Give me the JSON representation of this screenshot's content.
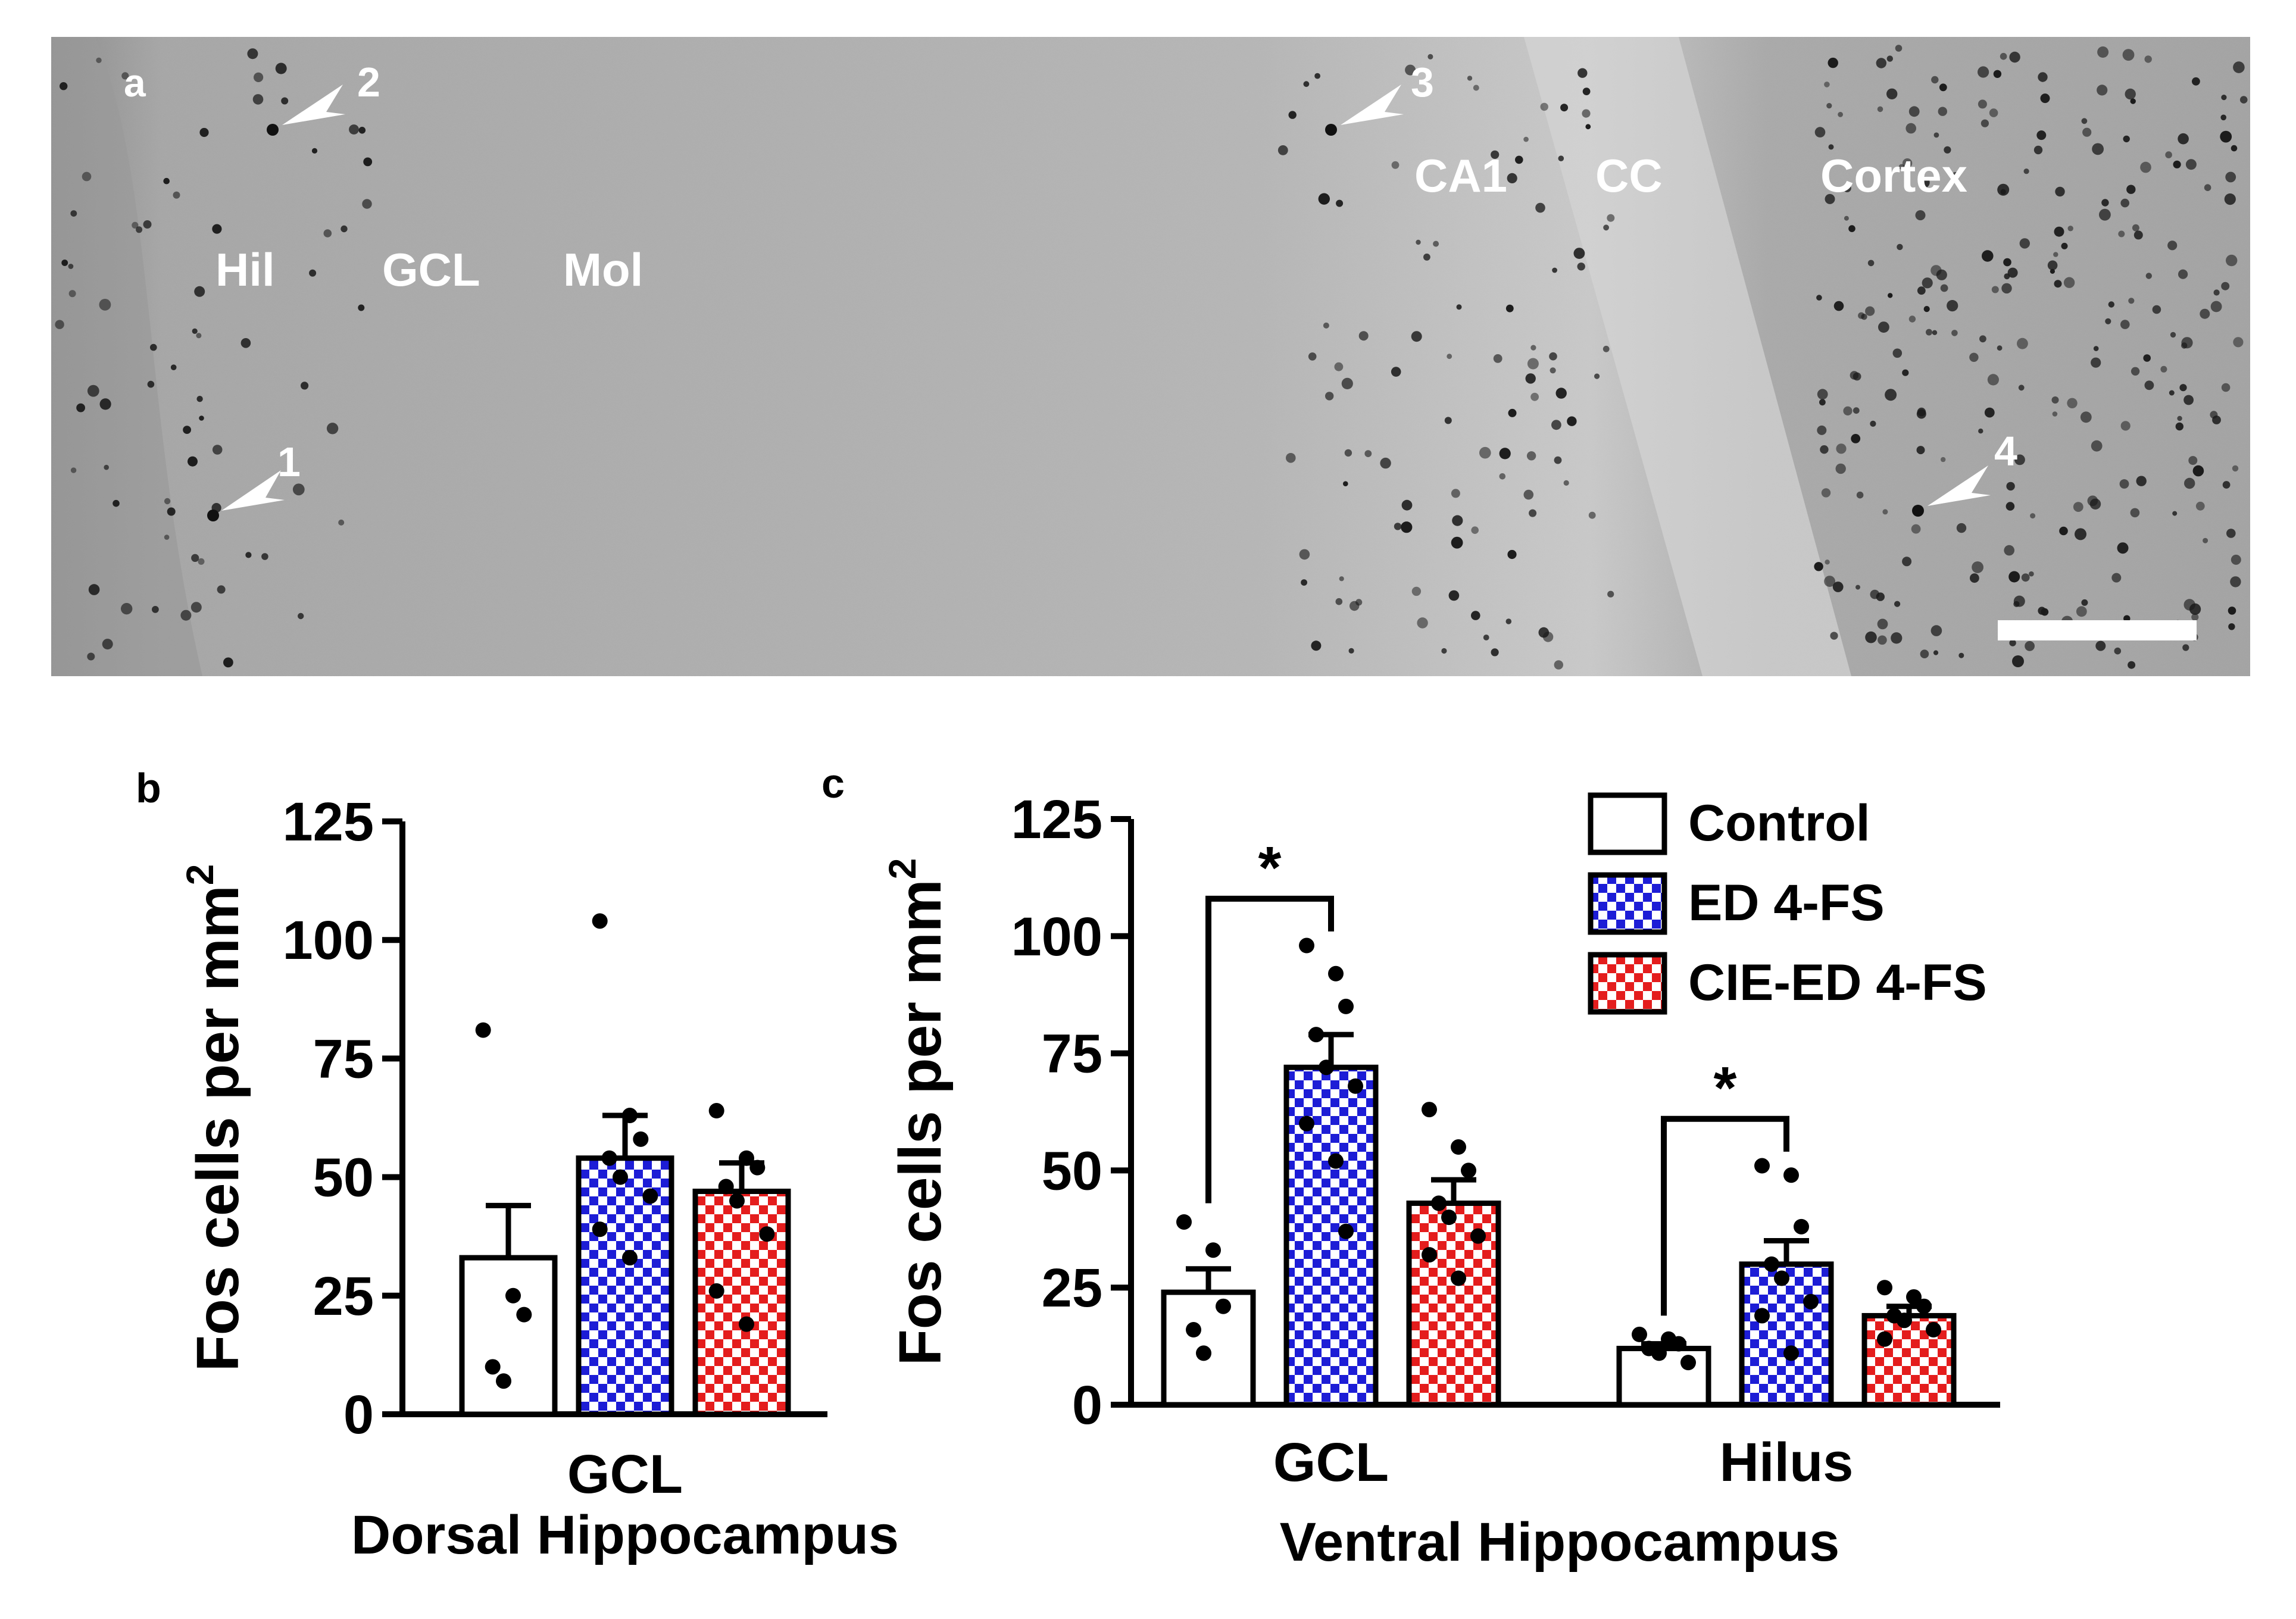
{
  "panel_a": {
    "letter": "a",
    "region_labels": [
      "Hil",
      "GCL",
      "Mol",
      "CA1",
      "CC",
      "Cortex"
    ],
    "arrow_labels": [
      "1",
      "2",
      "3",
      "4"
    ]
  },
  "legend": {
    "entries": [
      {
        "label": "Control",
        "pattern": "none"
      },
      {
        "label": "ED 4-FS",
        "pattern": "blue-check"
      },
      {
        "label": "CIE-ED 4-FS",
        "pattern": "red-check"
      }
    ]
  },
  "colors": {
    "ed_check": "#1d1dd6",
    "cie_check": "#e41d1d",
    "control": "#ffffff",
    "ink": "#000000"
  },
  "chart_data": [
    {
      "panel": "b",
      "type": "bar",
      "ylabel": "Fos cells per mm",
      "ylabel_sup": "2",
      "ylim": [
        0,
        125
      ],
      "yticks": [
        0,
        25,
        50,
        75,
        100,
        125
      ],
      "categories": [
        "GCL"
      ],
      "group_title": "Dorsal Hippocampus",
      "series": [
        {
          "name": "Control",
          "values": [
            33
          ],
          "sem": [
            11
          ],
          "points": [
            [
              81,
              25,
              21,
              10,
              7
            ]
          ]
        },
        {
          "name": "ED 4-FS",
          "values": [
            54
          ],
          "sem": [
            9
          ],
          "points": [
            [
              104,
              63,
              58,
              54,
              50,
              46,
              39,
              33
            ]
          ]
        },
        {
          "name": "CIE-ED 4-FS",
          "values": [
            47
          ],
          "sem": [
            6
          ],
          "points": [
            [
              64,
              54,
              52,
              48,
              45,
              38,
              26,
              19
            ]
          ]
        }
      ]
    },
    {
      "panel": "c",
      "type": "bar",
      "ylabel": "Fos cells per mm",
      "ylabel_sup": "2",
      "ylim": [
        0,
        125
      ],
      "yticks": [
        0,
        25,
        50,
        75,
        100,
        125
      ],
      "categories": [
        "GCL",
        "Hilus"
      ],
      "group_title": "Ventral Hippocampus",
      "series": [
        {
          "name": "Control",
          "values": [
            24,
            12
          ],
          "sem": [
            5,
            1
          ],
          "points": [
            [
              39,
              33,
              21,
              16,
              11
            ],
            [
              15,
              14,
              13,
              12,
              11,
              9
            ]
          ]
        },
        {
          "name": "ED 4-FS",
          "values": [
            72,
            30
          ],
          "sem": [
            7,
            5
          ],
          "points": [
            [
              98,
              92,
              85,
              79,
              72,
              68,
              60,
              52,
              37
            ],
            [
              51,
              49,
              38,
              30,
              27,
              22,
              19,
              11
            ]
          ]
        },
        {
          "name": "CIE-ED 4-FS",
          "values": [
            43,
            19
          ],
          "sem": [
            5,
            2
          ],
          "points": [
            [
              63,
              55,
              50,
              43,
              40,
              36,
              32,
              27
            ],
            [
              25,
              23,
              21,
              19,
              18,
              16,
              14
            ]
          ]
        }
      ],
      "significance": [
        {
          "category": "GCL",
          "from": "Control",
          "to": "ED 4-FS",
          "label": "*"
        },
        {
          "category": "Hilus",
          "from": "Control",
          "to": "ED 4-FS",
          "label": "*"
        }
      ]
    }
  ]
}
